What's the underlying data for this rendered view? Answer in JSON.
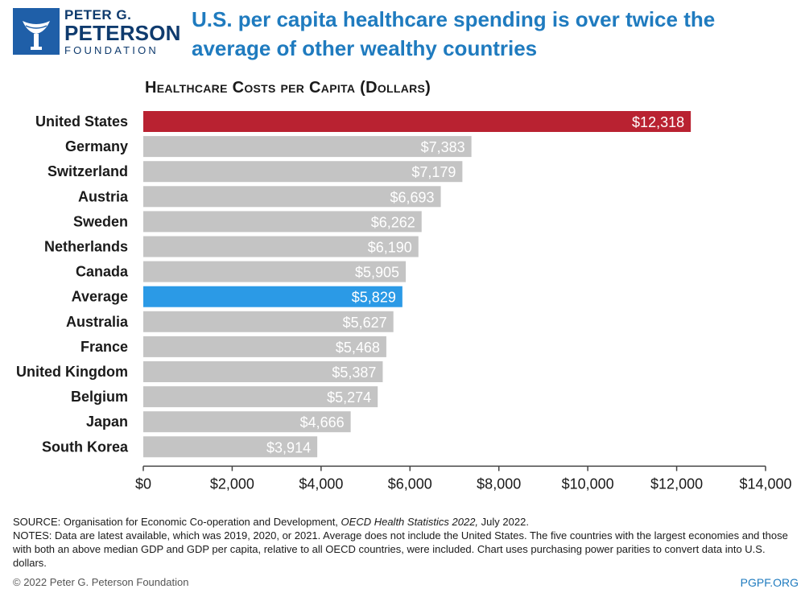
{
  "logo": {
    "line1": "PETER G.",
    "line2": "PETERSON",
    "line3": "FOUNDATION"
  },
  "headline": "U.S. per capita healthcare spending is over twice the average of other wealthy countries",
  "colors": {
    "highlight_us": "#b92231",
    "highlight_average": "#2b9ae6",
    "default_bar": "#c4c4c4",
    "headline": "#1f7bbf"
  },
  "chart_data": {
    "type": "bar",
    "orientation": "horizontal",
    "title": "Healthcare Costs per Capita (Dollars)",
    "categories": [
      "United States",
      "Germany",
      "Switzerland",
      "Austria",
      "Sweden",
      "Netherlands",
      "Canada",
      "Average",
      "Australia",
      "France",
      "United Kingdom",
      "Belgium",
      "Japan",
      "South Korea"
    ],
    "values": [
      12318,
      7383,
      7179,
      6693,
      6262,
      6190,
      5905,
      5829,
      5627,
      5468,
      5387,
      5274,
      4666,
      3914
    ],
    "value_labels": [
      "$12,318",
      "$7,383",
      "$7,179",
      "$6,693",
      "$6,262",
      "$6,190",
      "$5,905",
      "$5,829",
      "$5,627",
      "$5,468",
      "$5,387",
      "$5,274",
      "$4,666",
      "$3,914"
    ],
    "xlim": [
      0,
      14000
    ],
    "x_ticks": [
      0,
      2000,
      4000,
      6000,
      8000,
      10000,
      12000,
      14000
    ],
    "x_tick_labels": [
      "$0",
      "$2,000",
      "$4,000",
      "$6,000",
      "$8,000",
      "$10,000",
      "$12,000",
      "$14,000"
    ],
    "highlight": {
      "United States": "#b92231",
      "Average": "#2b9ae6"
    },
    "grid": false,
    "legend": "none"
  },
  "source": {
    "source_prefix": "SOURCE: Organisation for Economic Co-operation and Development, ",
    "source_italic": "OECD Health Statistics 2022,",
    "source_suffix": " July 2022.",
    "notes": "NOTES: Data are latest available, which was 2019, 2020, or 2021. Average does not include the United States. The five countries with the largest economies and those with both an above median GDP and GDP per capita, relative to all OECD countries, were included. Chart uses purchasing power parities to convert data into U.S. dollars."
  },
  "footer": {
    "copyright": "© 2022 Peter G. Peterson Foundation",
    "site": "PGPF.ORG"
  }
}
